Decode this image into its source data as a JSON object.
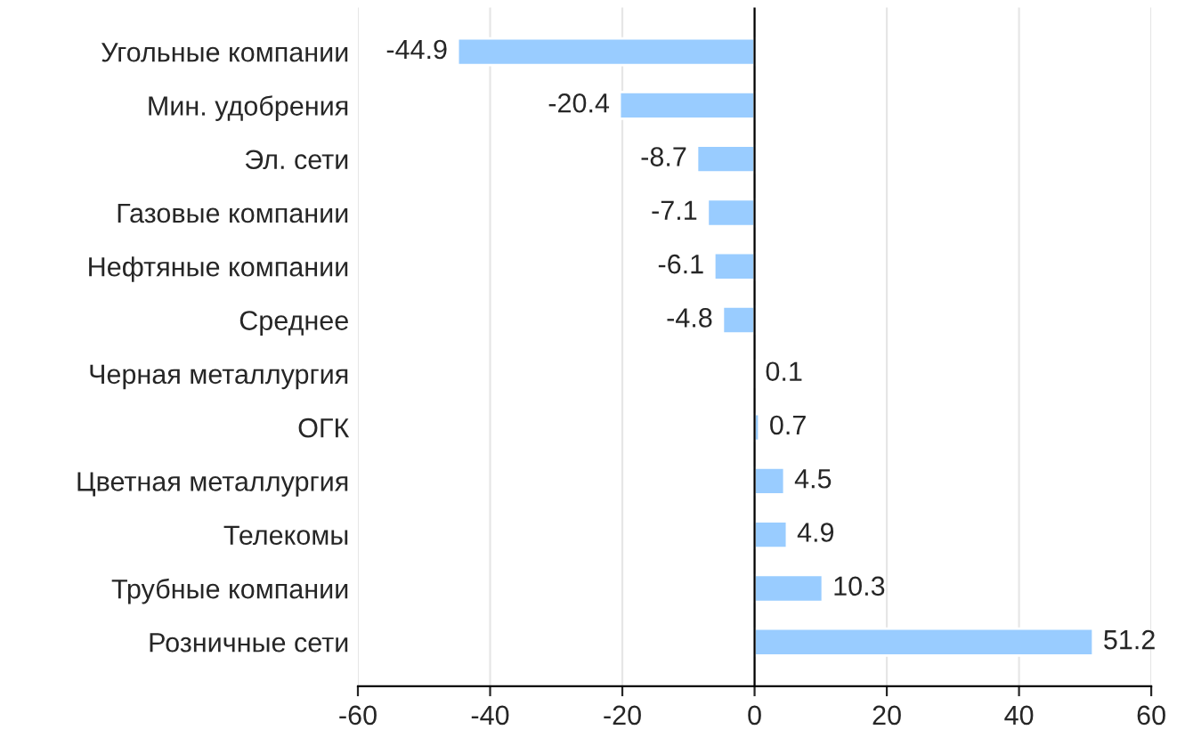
{
  "chart_data": {
    "type": "bar",
    "orientation": "horizontal",
    "categories": [
      "Угольные компании",
      "Мин. удобрения",
      "Эл. сети",
      "Газовые компании",
      "Нефтяные компании",
      "Среднее",
      "Черная металлургия",
      "ОГК",
      "Цветная металлургия",
      "Телекомы",
      "Трубные компании",
      "Розничные сети"
    ],
    "values": [
      -44.9,
      -20.4,
      -8.7,
      -7.1,
      -6.1,
      -4.8,
      0.1,
      0.7,
      4.5,
      4.9,
      10.3,
      51.2
    ],
    "color": "#99ccff",
    "xlim": [
      -60,
      60
    ],
    "xticks": [
      -60,
      -40,
      -20,
      0,
      20,
      40,
      60
    ],
    "grid": "x",
    "data_labels": true,
    "ref_lines": [
      {
        "axis": "x",
        "value": 0,
        "color": "#000000"
      }
    ]
  }
}
